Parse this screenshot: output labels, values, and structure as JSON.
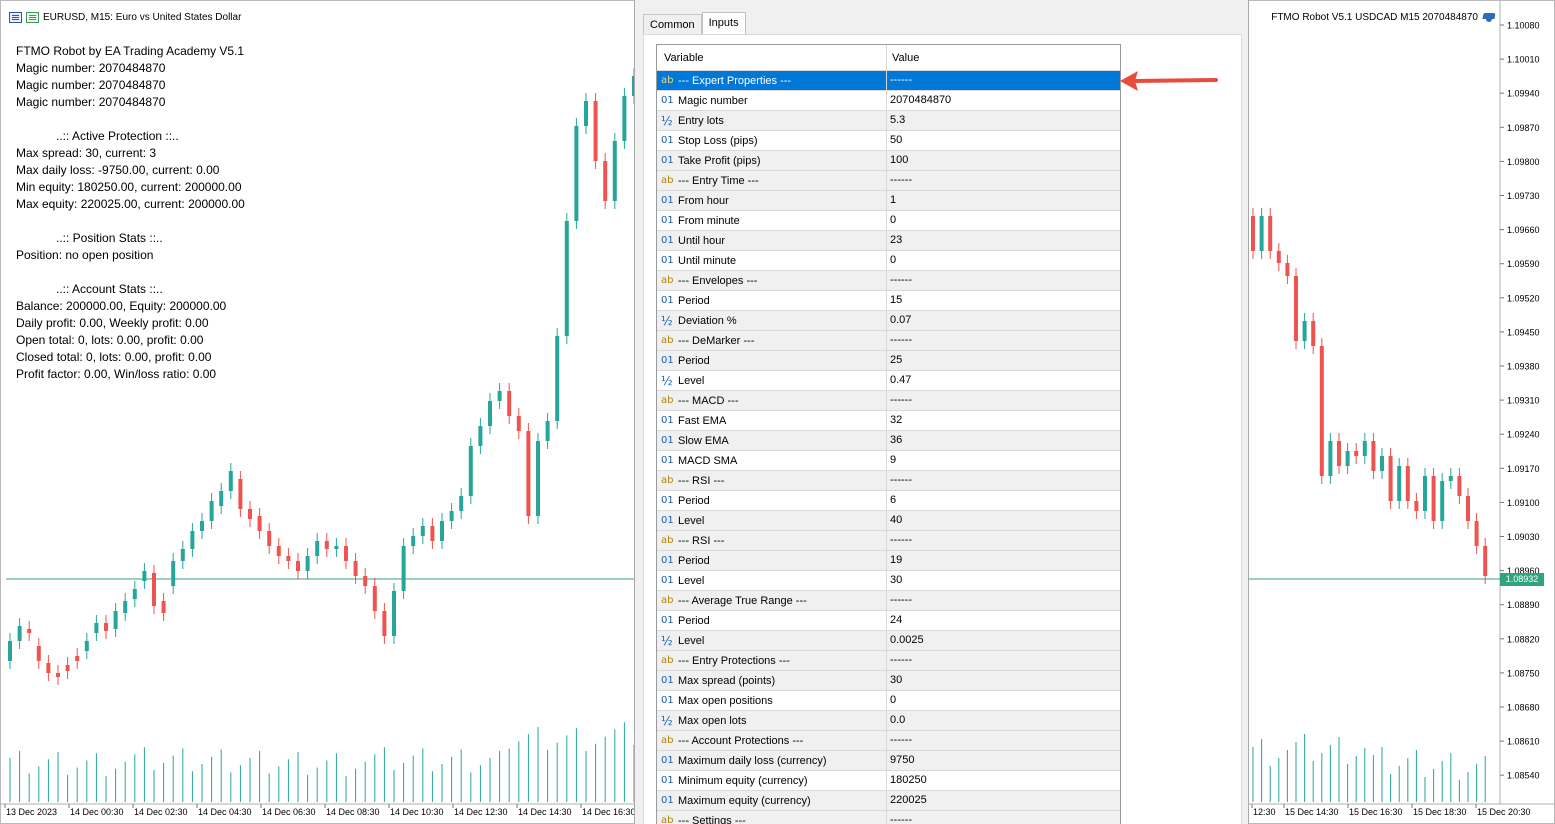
{
  "left_chart": {
    "header": "EURUSD, M15:  Euro vs United States Dollar",
    "info_lines": [
      "FTMO Robot by EA Trading Academy V5.1",
      "Magic number: 2070484870",
      "Magic number: 2070484870",
      "Magic number: 2070484870",
      "",
      "            ..:: Active Protection ::..",
      "Max spread: 30, current: 3",
      "Max daily loss: -9750.00, current: 0.00",
      "Min equity: 180250.00, current: 200000.00",
      "Max equity: 220025.00, current: 200000.00",
      "",
      "            ..:: Position Stats ::..",
      "Position: no open position",
      "",
      "            ..:: Account Stats ::..",
      "Balance: 200000.00, Equity: 200000.00",
      "Daily profit: 0.00, Weekly profit: 0.00",
      "Open total: 0, lots: 0.00, profit: 0.00",
      "Closed total: 0, lots: 0.00, profit: 0.00",
      "Profit factor: 0.00, Win/loss ratio: 0.00"
    ],
    "time_labels": [
      "13 Dec 2023",
      "14 Dec 00:30",
      "14 Dec 02:30",
      "14 Dec 04:30",
      "14 Dec 06:30",
      "14 Dec 08:30",
      "14 Dec 10:30",
      "14 Dec 12:30",
      "14 Dec 14:30",
      "14 Dec 16:30"
    ]
  },
  "right_chart": {
    "header": "FTMO Robot V5.1 USDCAD M15 2070484870",
    "price_labels": [
      "1.10080",
      "1.10010",
      "1.09940",
      "1.09870",
      "1.09800",
      "1.09730",
      "1.09660",
      "1.09590",
      "1.09520",
      "1.09450",
      "1.09380",
      "1.09310",
      "1.09240",
      "1.09170",
      "1.09100",
      "1.09030",
      "1.08960",
      "1.08890",
      "1.08820",
      "1.08750",
      "1.08680",
      "1.08610",
      "1.08540"
    ],
    "current_price": "1.08932",
    "time_labels": [
      "12:30",
      "15 Dec 14:30",
      "15 Dec 16:30",
      "15 Dec 18:30",
      "15 Dec 20:30"
    ]
  },
  "colors": {
    "bull": "#26a69a",
    "bear": "#ef5350",
    "price_line": "#2ea57c",
    "selection": "#0078d7",
    "arrow": "#e74c3c"
  },
  "dialog": {
    "tabs": [
      "Common",
      "Inputs"
    ],
    "active_tab": "Inputs",
    "columns": [
      "Variable",
      "Value"
    ],
    "rows": [
      {
        "type": "ab",
        "icon": "ab",
        "variable": "--- Expert Properties ---",
        "value": "------",
        "selected": true
      },
      {
        "type": "01",
        "icon": "01",
        "variable": "Magic number",
        "value": "2070484870"
      },
      {
        "type": "dbl",
        "icon": "½",
        "variable": "Entry lots",
        "value": "5.3"
      },
      {
        "type": "01",
        "icon": "01",
        "variable": "Stop Loss   (pips)",
        "value": "50"
      },
      {
        "type": "01",
        "icon": "01",
        "variable": "Take Profit (pips)",
        "value": "100"
      },
      {
        "type": "ab",
        "icon": "ab",
        "variable": "--- Entry Time ---",
        "value": "------"
      },
      {
        "type": "01",
        "icon": "01",
        "variable": "From hour",
        "value": "1"
      },
      {
        "type": "01",
        "icon": "01",
        "variable": "From minute",
        "value": "0"
      },
      {
        "type": "01",
        "icon": "01",
        "variable": "Until hour",
        "value": "23"
      },
      {
        "type": "01",
        "icon": "01",
        "variable": "Until minute",
        "value": "0"
      },
      {
        "type": "ab",
        "icon": "ab",
        "variable": "--- Envelopes ---",
        "value": "------"
      },
      {
        "type": "01",
        "icon": "01",
        "variable": "Period",
        "value": "15"
      },
      {
        "type": "dbl",
        "icon": "½",
        "variable": "Deviation %",
        "value": "0.07"
      },
      {
        "type": "ab",
        "icon": "ab",
        "variable": "--- DeMarker ---",
        "value": "------"
      },
      {
        "type": "01",
        "icon": "01",
        "variable": "Period",
        "value": "25"
      },
      {
        "type": "dbl",
        "icon": "½",
        "variable": "Level",
        "value": "0.47"
      },
      {
        "type": "ab",
        "icon": "ab",
        "variable": "--- MACD ---",
        "value": "------"
      },
      {
        "type": "01",
        "icon": "01",
        "variable": "Fast EMA",
        "value": "32"
      },
      {
        "type": "01",
        "icon": "01",
        "variable": "Slow EMA",
        "value": "36"
      },
      {
        "type": "01",
        "icon": "01",
        "variable": "MACD SMA",
        "value": "9"
      },
      {
        "type": "ab",
        "icon": "ab",
        "variable": "--- RSI ---",
        "value": "------"
      },
      {
        "type": "01",
        "icon": "01",
        "variable": "Period",
        "value": "6"
      },
      {
        "type": "01",
        "icon": "01",
        "variable": "Level",
        "value": "40"
      },
      {
        "type": "ab",
        "icon": "ab",
        "variable": "--- RSI ---",
        "value": "------"
      },
      {
        "type": "01",
        "icon": "01",
        "variable": "Period",
        "value": "19"
      },
      {
        "type": "01",
        "icon": "01",
        "variable": "Level",
        "value": "30"
      },
      {
        "type": "ab",
        "icon": "ab",
        "variable": "--- Average True Range ---",
        "value": "------"
      },
      {
        "type": "01",
        "icon": "01",
        "variable": "Period",
        "value": "24"
      },
      {
        "type": "dbl",
        "icon": "½",
        "variable": "Level",
        "value": "0.0025"
      },
      {
        "type": "ab",
        "icon": "ab",
        "variable": "--- Entry Protections ---",
        "value": "------"
      },
      {
        "type": "01",
        "icon": "01",
        "variable": "Max spread (points)",
        "value": "30"
      },
      {
        "type": "01",
        "icon": "01",
        "variable": "Max open positions",
        "value": "0"
      },
      {
        "type": "dbl",
        "icon": "½",
        "variable": "Max open lots",
        "value": "0.0"
      },
      {
        "type": "ab",
        "icon": "ab",
        "variable": "--- Account Protections ---",
        "value": "------"
      },
      {
        "type": "01",
        "icon": "01",
        "variable": "Maximum daily loss (currency)",
        "value": "9750"
      },
      {
        "type": "01",
        "icon": "01",
        "variable": "Minimum equity (currency)",
        "value": "180250"
      },
      {
        "type": "01",
        "icon": "01",
        "variable": "Maximum equity (currency)",
        "value": "220025"
      },
      {
        "type": "ab",
        "icon": "ab",
        "variable": "--- Settings ---",
        "value": "------"
      }
    ]
  }
}
